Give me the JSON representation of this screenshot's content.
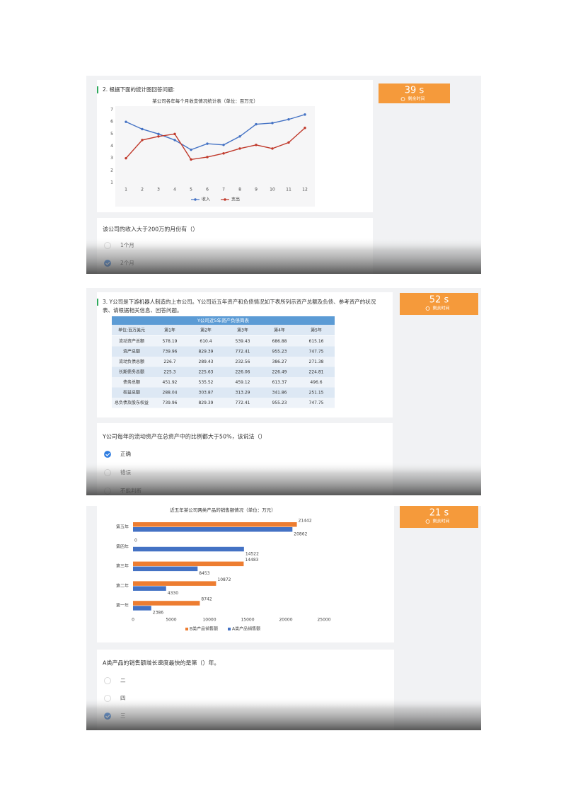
{
  "chart_data": [
    {
      "type": "line",
      "title": "某公司各年每个月收支情况统计表（单位：百万元）",
      "categories": [
        "1",
        "2",
        "3",
        "4",
        "5",
        "6",
        "7",
        "8",
        "9",
        "10",
        "11",
        "12"
      ],
      "series": [
        {
          "name": "收入",
          "color": "#4472c4",
          "values": [
            6,
            5.4,
            5.0,
            4.5,
            3.7,
            4.2,
            4.1,
            4.8,
            5.8,
            5.9,
            6.2,
            6.6
          ]
        },
        {
          "name": "支出",
          "color": "#c0392b",
          "values": [
            3,
            4.5,
            4.8,
            5.0,
            2.9,
            3.1,
            3.4,
            3.8,
            4.1,
            3.8,
            4.3,
            5.5
          ]
        }
      ],
      "ylim": [
        1,
        7
      ],
      "yticks": [
        1,
        2,
        3,
        4,
        5,
        6,
        7
      ],
      "grid": false,
      "legend": "bottom"
    },
    {
      "type": "bar",
      "orientation": "horizontal",
      "title": "近五年某公司两类产品的销售额情况（单位：万元）",
      "categories": [
        "第五年",
        "第四年",
        "第三年",
        "第二年",
        "第一年"
      ],
      "series": [
        {
          "name": "B类产品销售额",
          "color": "#ed7d31",
          "values": [
            21442,
            0,
            14483,
            10872,
            8742
          ]
        },
        {
          "name": "A类产品销售额",
          "color": "#4472c4",
          "values": [
            20862,
            14522,
            8453,
            4330,
            2386
          ]
        }
      ],
      "xlim": [
        0,
        25000
      ],
      "xticks": [
        0,
        5000,
        10000,
        15000,
        20000,
        25000
      ],
      "grid": false,
      "legend": "bottom"
    }
  ],
  "table": {
    "title": "Y公司近5年资产负债简表",
    "header": [
      "单位:百万美元",
      "第1年",
      "第2年",
      "第3年",
      "第4年",
      "第5年"
    ],
    "rows": [
      [
        "流动资产总额",
        578.19,
        610.4,
        539.43,
        686.88,
        615.16
      ],
      [
        "资产总额",
        739.96,
        829.39,
        772.41,
        955.23,
        747.75
      ],
      [
        "流动负债总额",
        226.7,
        289.43,
        232.56,
        386.27,
        271.38
      ],
      [
        "长期债务总额",
        225.3,
        225.63,
        226.06,
        226.49,
        224.81
      ],
      [
        "债务总额",
        451.92,
        535.52,
        459.12,
        613.37,
        496.6
      ],
      [
        "权益总额",
        288.04,
        303.87,
        313.29,
        341.86,
        251.15
      ],
      [
        "总负债及股东权益",
        739.96,
        829.39,
        772.41,
        955.23,
        747.75
      ]
    ]
  },
  "questions": [
    {
      "title_lines": [
        "2. 根据下面的统计图回答问题:"
      ],
      "timer": "39 s",
      "timer_label": "剩余时间",
      "prompt": "该公司的收入大于200万的月份有（）",
      "options": [
        "1个月",
        "2个月"
      ],
      "selected": 1
    },
    {
      "title_lines": [
        "3. Y公司是下游机器人制造的上市公司。Y公司近五年资产和负债情况如下表所列示资产总额及负债、参考资产的状况",
        "表、请根据相关信息、回答问题。"
      ],
      "timer": "52 s",
      "timer_label": "剩余时间",
      "prompt": "Y公司每年的流动资产在总资产中的比例都大于50%，该说法（）",
      "options": [
        "正确",
        "错误",
        "不能判断"
      ],
      "selected": 0
    },
    {
      "title_lines": [],
      "timer": "21 s",
      "timer_label": "剩余时间",
      "prompt": "A类产品的销售额增长速度最快的是第（）年。",
      "options": [
        "二",
        "四",
        "三"
      ],
      "selected": 2
    }
  ]
}
